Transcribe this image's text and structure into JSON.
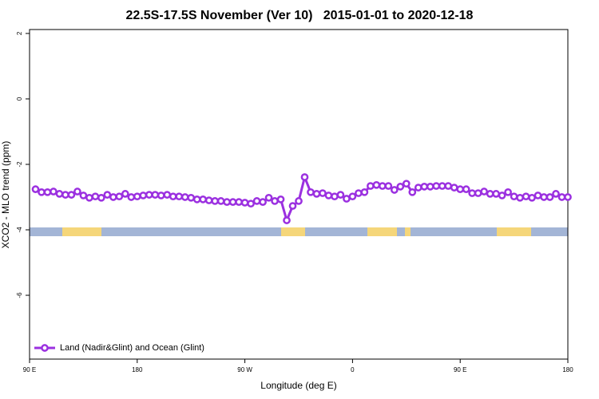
{
  "chart_data": {
    "type": "line",
    "title": "22.5S-17.5S November (Ver 10)   2015-01-01 to 2020-12-18",
    "xlabel": "Longitude (deg E)",
    "ylabel": "XCO2 - MLO trend (ppm)",
    "xlim": [
      90,
      540
    ],
    "ylim": [
      -7.95,
      2.12
    ],
    "xticks": [
      {
        "value": 90,
        "label": "90 E"
      },
      {
        "value": 180,
        "label": "180"
      },
      {
        "value": 270,
        "label": "90 W"
      },
      {
        "value": 360,
        "label": "0"
      },
      {
        "value": 450,
        "label": "90 E"
      },
      {
        "value": 540,
        "label": "180"
      }
    ],
    "yticks": [
      2,
      0,
      -2,
      -4,
      -6
    ],
    "legend": "lower left",
    "x": [
      95,
      100,
      105,
      110,
      115,
      120,
      125,
      130,
      135,
      140,
      145,
      150,
      155,
      160,
      165,
      170,
      175,
      180,
      185,
      190,
      195,
      200,
      205,
      210,
      215,
      220,
      225,
      230,
      235,
      240,
      245,
      250,
      255,
      260,
      265,
      270,
      275,
      280,
      285,
      290,
      295,
      300,
      305,
      310,
      315,
      320,
      325,
      330,
      335,
      340,
      345,
      350,
      355,
      360,
      365,
      370,
      375,
      380,
      385,
      390,
      395,
      400,
      405,
      410,
      415,
      420,
      425,
      430,
      435,
      440,
      445,
      450,
      455,
      460,
      465,
      470,
      475,
      480,
      485,
      490,
      495,
      500,
      505,
      510,
      515,
      520,
      525,
      530,
      535,
      540
    ],
    "series": [
      {
        "name": "Land (Nadir&Glint) and Ocean (Glint)",
        "color": "#9b30e0",
        "values": [
          -2.76,
          -2.85,
          -2.85,
          -2.83,
          -2.9,
          -2.93,
          -2.93,
          -2.83,
          -2.95,
          -3.02,
          -2.98,
          -3.02,
          -2.93,
          -3.0,
          -2.98,
          -2.9,
          -3.0,
          -2.98,
          -2.95,
          -2.93,
          -2.93,
          -2.95,
          -2.93,
          -2.98,
          -2.98,
          -3.0,
          -3.02,
          -3.07,
          -3.07,
          -3.1,
          -3.12,
          -3.12,
          -3.15,
          -3.15,
          -3.15,
          -3.17,
          -3.2,
          -3.12,
          -3.15,
          -3.02,
          -3.12,
          -3.07,
          -3.71,
          -3.27,
          -3.12,
          -2.39,
          -2.85,
          -2.9,
          -2.88,
          -2.95,
          -2.98,
          -2.93,
          -3.05,
          -2.98,
          -2.88,
          -2.85,
          -2.66,
          -2.63,
          -2.66,
          -2.66,
          -2.78,
          -2.68,
          -2.59,
          -2.85,
          -2.71,
          -2.68,
          -2.68,
          -2.66,
          -2.66,
          -2.66,
          -2.71,
          -2.76,
          -2.76,
          -2.88,
          -2.88,
          -2.83,
          -2.9,
          -2.9,
          -2.95,
          -2.85,
          -2.98,
          -3.02,
          -2.98,
          -3.02,
          -2.95,
          -3.0,
          -3.0,
          -2.9,
          -3.0,
          -3.0
        ]
      }
    ]
  }
}
